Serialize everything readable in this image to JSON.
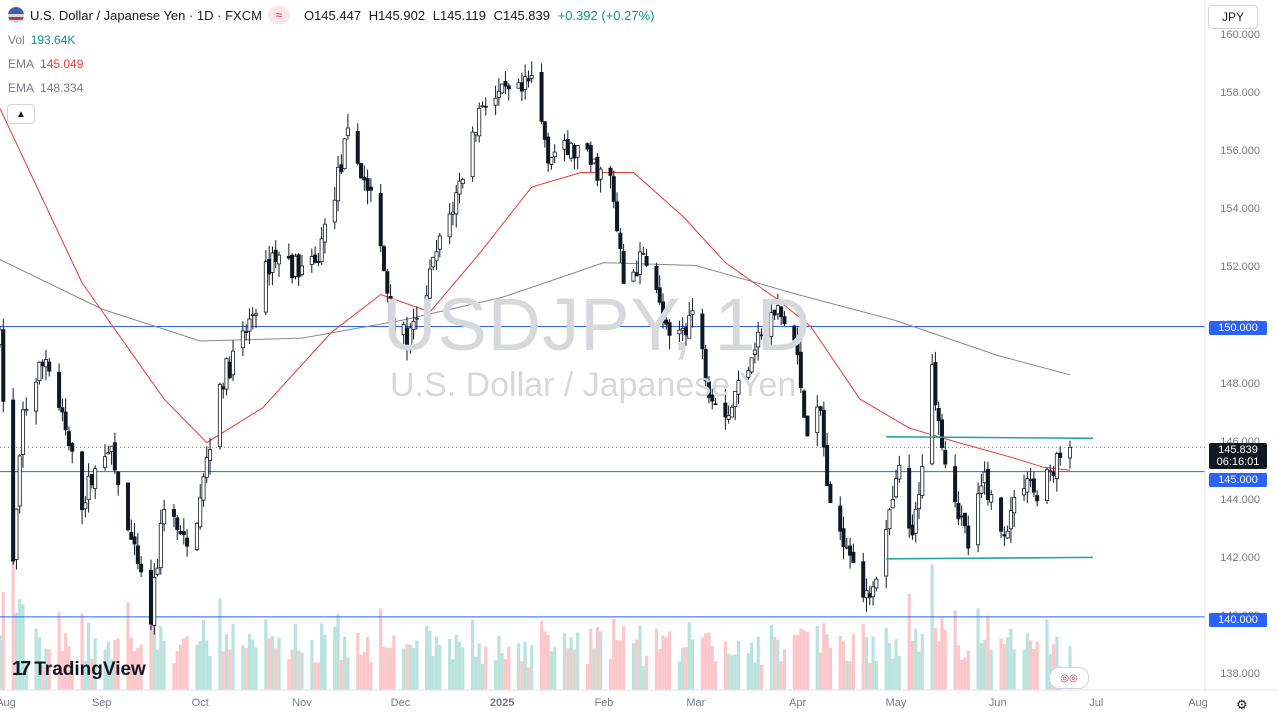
{
  "header": {
    "symbol_title": "U.S. Dollar / Japanese Yen · 1D · FXCM",
    "open_label": "O",
    "open": "145.447",
    "high_label": "H",
    "high": "145.902",
    "low_label": "L",
    "low": "145.119",
    "close_label": "C",
    "close": "145.839",
    "change": "+0.392 (+0.27%)",
    "pill_icon": "wave-icon"
  },
  "indicators": [
    {
      "name": "Vol",
      "value": "193.64K",
      "color": "#089981"
    },
    {
      "name": "EMA",
      "value": "145.049",
      "color": "#e53935"
    },
    {
      "name": "EMA",
      "value": "148.334",
      "color": "#787b86"
    }
  ],
  "currency_button": "JPY",
  "watermark": {
    "symbol": "USDJPY, 1D",
    "name": "U.S. Dollar / Japanese Yen"
  },
  "brand": "TradingView",
  "colors": {
    "up": "#089981",
    "down": "#131722",
    "ema_fast": "#e53935",
    "ema_slow": "#888888",
    "level": "#2962ff",
    "trend": "#26a69a"
  },
  "chart_data": {
    "type": "candlestick",
    "y_ticks": [
      "160.000",
      "158.000",
      "156.000",
      "154.000",
      "152.000",
      "150.000",
      "148.000",
      "146.000",
      "144.000",
      "142.000",
      "140.000",
      "138.000"
    ],
    "x_ticks": [
      "Aug",
      "Sep",
      "Oct",
      "Nov",
      "Dec",
      "2025",
      "Feb",
      "Mar",
      "Apr",
      "May",
      "Jun",
      "Jul",
      "Aug"
    ],
    "ylim": [
      137.3,
      160.2
    ],
    "price_tags": {
      "last": "145.839",
      "countdown": "06:16:01",
      "levels": [
        "150.000",
        "145.000",
        "140.000"
      ]
    },
    "horizontal_levels": [
      150.0,
      145.0,
      140.0
    ],
    "trend_lines": [
      {
        "from": [
          "2025-04-28",
          146.2
        ],
        "to": [
          "2025-06-30",
          146.15
        ]
      },
      {
        "from": [
          "2025-04-28",
          142.0
        ],
        "to": [
          "2025-06-30",
          142.05
        ]
      }
    ],
    "price_path": [
      [
        "2024-08-01",
        149.5
      ],
      [
        "2024-08-05",
        141.8
      ],
      [
        "2024-08-08",
        147.0
      ],
      [
        "2024-08-15",
        149.0
      ],
      [
        "2024-08-26",
        144.0
      ],
      [
        "2024-09-03",
        146.0
      ],
      [
        "2024-09-10",
        142.5
      ],
      [
        "2024-09-16",
        139.9
      ],
      [
        "2024-09-20",
        144.0
      ],
      [
        "2024-09-27",
        142.2
      ],
      [
        "2024-10-01",
        144.0
      ],
      [
        "2024-10-07",
        148.0
      ],
      [
        "2024-10-15",
        149.8
      ],
      [
        "2024-10-23",
        152.5
      ],
      [
        "2024-10-31",
        152.0
      ],
      [
        "2024-11-05",
        152.0
      ],
      [
        "2024-11-15",
        156.5
      ],
      [
        "2024-11-22",
        154.5
      ],
      [
        "2024-11-29",
        150.0
      ],
      [
        "2024-12-03",
        149.5
      ],
      [
        "2024-12-06",
        150.0
      ],
      [
        "2024-12-12",
        152.5
      ],
      [
        "2024-12-18",
        154.5
      ],
      [
        "2024-12-26",
        157.8
      ],
      [
        "2025-01-07",
        158.0
      ],
      [
        "2025-01-10",
        158.5
      ],
      [
        "2025-01-15",
        156.0
      ],
      [
        "2025-01-24",
        156.0
      ],
      [
        "2025-02-03",
        155.0
      ],
      [
        "2025-02-07",
        151.5
      ],
      [
        "2025-02-14",
        152.5
      ],
      [
        "2025-02-21",
        149.3
      ],
      [
        "2025-02-28",
        150.5
      ],
      [
        "2025-03-05",
        148.0
      ],
      [
        "2025-03-11",
        147.0
      ],
      [
        "2025-03-19",
        149.5
      ],
      [
        "2025-03-26",
        150.5
      ],
      [
        "2025-03-31",
        149.5
      ],
      [
        "2025-04-04",
        146.5
      ],
      [
        "2025-04-08",
        147.0
      ],
      [
        "2025-04-11",
        143.5
      ],
      [
        "2025-04-17",
        142.5
      ],
      [
        "2025-04-22",
        140.5
      ],
      [
        "2025-04-28",
        142.8
      ],
      [
        "2025-05-02",
        145.0
      ],
      [
        "2025-05-06",
        142.5
      ],
      [
        "2025-05-12",
        148.5
      ],
      [
        "2025-05-16",
        145.5
      ],
      [
        "2025-05-23",
        142.5
      ],
      [
        "2025-05-28",
        144.8
      ],
      [
        "2025-06-02",
        142.8
      ],
      [
        "2025-06-10",
        145.0
      ],
      [
        "2025-06-13",
        144.0
      ],
      [
        "2025-06-18",
        145.2
      ],
      [
        "2025-06-23",
        145.839
      ]
    ],
    "ema_fast": [
      [
        "2024-08-01",
        157.5
      ],
      [
        "2024-08-26",
        151.5
      ],
      [
        "2024-09-20",
        147.5
      ],
      [
        "2024-10-03",
        146.0
      ],
      [
        "2024-10-20",
        147.2
      ],
      [
        "2024-11-10",
        149.8
      ],
      [
        "2024-11-25",
        151.1
      ],
      [
        "2024-12-10",
        150.5
      ],
      [
        "2024-12-25",
        152.5
      ],
      [
        "2025-01-10",
        154.8
      ],
      [
        "2025-01-25",
        155.3
      ],
      [
        "2025-02-10",
        155.3
      ],
      [
        "2025-02-25",
        153.8
      ],
      [
        "2025-03-10",
        152.2
      ],
      [
        "2025-03-25",
        151.0
      ],
      [
        "2025-04-05",
        150.0
      ],
      [
        "2025-04-20",
        147.5
      ],
      [
        "2025-05-05",
        146.5
      ],
      [
        "2025-05-20",
        146.0
      ],
      [
        "2025-06-05",
        145.5
      ],
      [
        "2025-06-15",
        145.15
      ],
      [
        "2025-06-23",
        145.049
      ]
    ],
    "ema_slow": [
      [
        "2024-08-01",
        152.3
      ],
      [
        "2024-09-01",
        150.6
      ],
      [
        "2024-10-01",
        149.5
      ],
      [
        "2024-11-01",
        149.6
      ],
      [
        "2024-12-01",
        150.2
      ],
      [
        "2025-01-01",
        151.0
      ],
      [
        "2025-02-01",
        152.2
      ],
      [
        "2025-03-01",
        152.1
      ],
      [
        "2025-04-01",
        151.1
      ],
      [
        "2025-05-01",
        150.2
      ],
      [
        "2025-06-01",
        149.0
      ],
      [
        "2025-06-23",
        148.334
      ]
    ]
  }
}
